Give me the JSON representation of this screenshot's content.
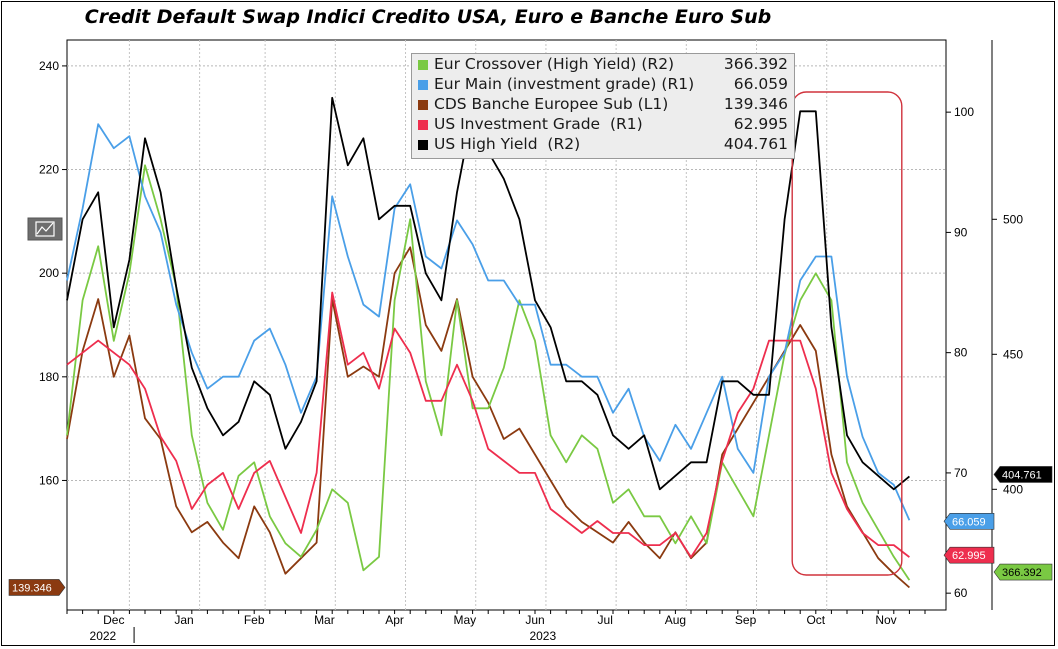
{
  "chart_data": {
    "type": "line",
    "title": "Credit Default Swap Indici Credito USA, Euro e Banche Euro Sub",
    "legend_position": "top-center",
    "grid": true,
    "x_axis": {
      "labels": [
        "Dec",
        "Jan",
        "Feb",
        "Mar",
        "Apr",
        "May",
        "Jun",
        "Jul",
        "Aug",
        "Sep",
        "Oct",
        "Nov"
      ],
      "year_labels": [
        "2022",
        "2023"
      ]
    },
    "axes": {
      "L1": {
        "ticks": [
          160,
          180,
          200,
          220,
          240
        ],
        "range": [
          135,
          245
        ]
      },
      "R1": {
        "ticks": [
          60,
          70,
          80,
          90,
          100
        ],
        "range": [
          58.6,
          106.0
        ]
      },
      "R2": {
        "ticks": [
          400,
          450,
          500
        ],
        "range": [
          355.3,
          566.4
        ]
      }
    },
    "highlight_box": {
      "color": "#d0323c",
      "from_week": 48,
      "to_week": 54
    },
    "x": [
      1,
      2,
      3,
      4,
      5,
      6,
      7,
      8,
      9,
      10,
      11,
      12,
      13,
      14,
      15,
      16,
      17,
      18,
      19,
      20,
      21,
      22,
      23,
      24,
      25,
      26,
      27,
      28,
      29,
      30,
      31,
      32,
      33,
      34,
      35,
      36,
      37,
      38,
      39,
      40,
      41,
      42,
      43,
      44,
      45,
      46,
      47,
      48,
      49,
      50,
      51,
      52,
      53,
      54,
      55
    ],
    "series": [
      {
        "name": "Eur Crossover (High Yield) (R2)",
        "axis": "R2",
        "color": "#7ac943",
        "last": "366.392",
        "values": [
          420,
          470,
          490,
          455,
          480,
          520,
          500,
          475,
          420,
          395,
          385,
          405,
          410,
          390,
          380,
          375,
          385,
          400,
          395,
          370,
          375,
          470,
          500,
          440,
          420,
          470,
          430,
          430,
          445,
          470,
          455,
          420,
          410,
          420,
          415,
          395,
          400,
          390,
          390,
          380,
          390,
          380,
          410,
          400,
          390,
          420,
          450,
          470,
          480,
          470,
          410,
          395,
          385,
          375,
          366.392
        ]
      },
      {
        "name": "Eur Main (investment grade) (R1)",
        "axis": "R1",
        "color": "#4a9fe8",
        "last": "66.059",
        "values": [
          86,
          92,
          99,
          97,
          98,
          93,
          90,
          84,
          80,
          77,
          78,
          78,
          81,
          82,
          79,
          75,
          78,
          93,
          88,
          84,
          83,
          92,
          94,
          88,
          87,
          91,
          89,
          86,
          86,
          84,
          84,
          79,
          79,
          78,
          78,
          75,
          77,
          73,
          71,
          74,
          72,
          75,
          78,
          72,
          70,
          78,
          80,
          86,
          88,
          88,
          78,
          73,
          70,
          69,
          66.059
        ]
      },
      {
        "name": "CDS Banche Europee Sub (L1)",
        "axis": "L1",
        "color": "#8b3a10",
        "last": "139.346",
        "values": [
          168,
          185,
          195,
          180,
          188,
          172,
          168,
          155,
          150,
          152,
          148,
          145,
          155,
          150,
          142,
          145,
          148,
          195,
          180,
          182,
          180,
          200,
          205,
          190,
          185,
          195,
          180,
          175,
          168,
          170,
          165,
          160,
          155,
          152,
          150,
          148,
          152,
          148,
          145,
          150,
          145,
          148,
          165,
          170,
          175,
          180,
          185,
          190,
          185,
          165,
          155,
          150,
          145,
          142,
          139.346
        ]
      },
      {
        "name": "US Investment Grade  (R1)",
        "axis": "R1",
        "color": "#ee2e4e",
        "last": "62.995",
        "values": [
          79,
          80,
          81,
          80,
          79,
          77,
          73,
          71,
          67,
          69,
          70,
          67,
          70,
          71,
          68,
          65,
          70,
          85,
          79,
          80,
          77,
          82,
          80,
          76,
          76,
          79,
          76,
          72,
          71,
          70,
          70,
          67,
          66,
          65,
          66,
          65,
          65,
          64,
          64,
          65,
          63,
          65,
          71,
          75,
          77,
          81,
          81,
          81,
          77,
          70,
          67,
          65,
          64,
          64,
          62.995
        ]
      },
      {
        "name": "US High Yield  (R2)",
        "axis": "R2",
        "color": "#000000",
        "last": "404.761",
        "values": [
          470,
          500,
          510,
          460,
          485,
          530,
          510,
          475,
          445,
          430,
          420,
          425,
          440,
          435,
          415,
          425,
          440,
          545,
          520,
          530,
          500,
          505,
          505,
          480,
          470,
          510,
          540,
          525,
          515,
          500,
          470,
          460,
          440,
          440,
          435,
          420,
          415,
          420,
          400,
          405,
          410,
          410,
          440,
          440,
          435,
          435,
          500,
          540,
          540,
          460,
          420,
          410,
          405,
          400,
          404.761
        ]
      }
    ]
  }
}
